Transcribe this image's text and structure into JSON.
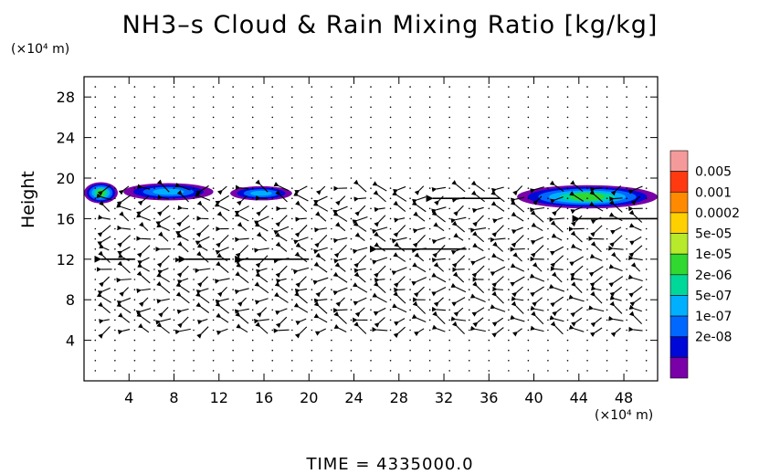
{
  "title": "NH3–s Cloud & Rain Mixing Ratio [kg/kg]",
  "y_units": "(×10⁴ m)",
  "x_units": "(×10⁴ m)",
  "ylabel": "Height",
  "time_label": "TIME  =  4335000.0",
  "chart_data": {
    "type": "contour+vector",
    "xlim": [
      0,
      51
    ],
    "ylim": [
      0,
      30
    ],
    "x_ticks": [
      4,
      8,
      12,
      16,
      20,
      24,
      28,
      32,
      36,
      40,
      44,
      48
    ],
    "y_ticks": [
      4,
      8,
      12,
      16,
      20,
      24,
      28
    ],
    "grid": false,
    "colorbar": {
      "labels": [
        "0.005",
        "0.001",
        "0.0002",
        "5e-05",
        "1e-05",
        "2e-06",
        "5e-07",
        "1e-07",
        "2e-08"
      ],
      "colors": [
        "#f59a9a",
        "#ff3a10",
        "#ff8a00",
        "#ffd000",
        "#b6ea2a",
        "#30d830",
        "#00d89a",
        "#00b0ff",
        "#0068ff",
        "#0008d8",
        "#7a00a8"
      ]
    },
    "cloud_regions": [
      {
        "x": [
          0,
          3
        ],
        "y": [
          17.5,
          19.6
        ],
        "peak": "1e-05"
      },
      {
        "x": [
          3.5,
          11.5
        ],
        "y": [
          17.8,
          19.5
        ],
        "peak": "5e-07"
      },
      {
        "x": [
          13,
          18.5
        ],
        "y": [
          17.8,
          19.2
        ],
        "peak": "5e-07"
      },
      {
        "x": [
          38.5,
          51
        ],
        "y": [
          17.0,
          19.3
        ],
        "peak": "1e-05"
      }
    ],
    "wind_arrows": [
      {
        "y": 12,
        "x_start": 1.5,
        "x_end": 4.5,
        "direction": "west"
      },
      {
        "y": 12,
        "x_start": 9,
        "x_end": 13,
        "direction": "west"
      },
      {
        "y": 12,
        "x_start": 14,
        "x_end": 20,
        "direction": "west"
      },
      {
        "y": 13,
        "x_start": 26,
        "x_end": 34,
        "direction": "west"
      },
      {
        "y": 16,
        "x_start": 44,
        "x_end": 51,
        "direction": "west"
      },
      {
        "y": 18,
        "x_start": 31,
        "x_end": 37,
        "direction": "west"
      }
    ]
  }
}
